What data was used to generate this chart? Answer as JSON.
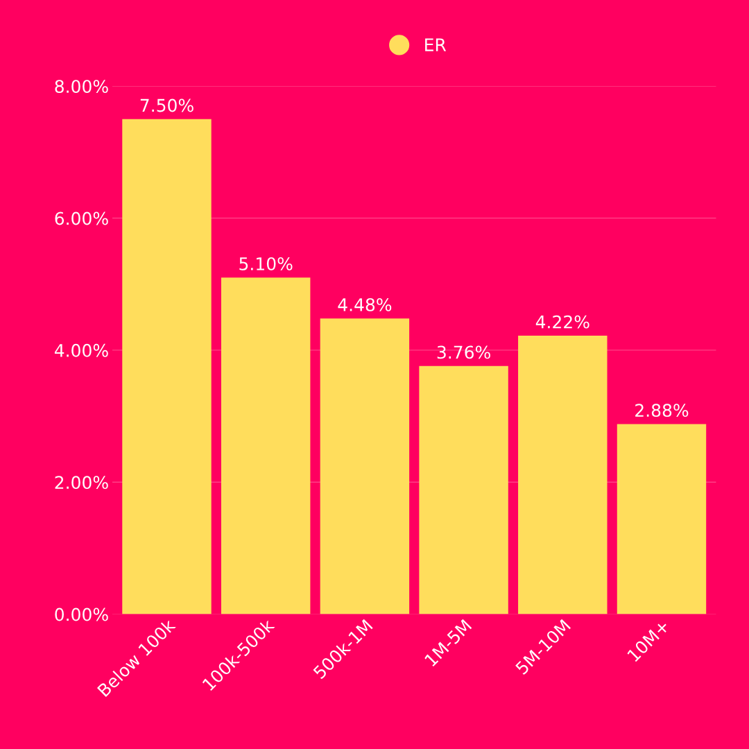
{
  "chart_data": {
    "type": "bar",
    "categories": [
      "Below 100k",
      "100k-500k",
      "500k-1M",
      "1M-5M",
      "5M-10M",
      "10M+"
    ],
    "series": [
      {
        "name": "ER",
        "color": "#ffdd5c",
        "values": [
          7.5,
          5.1,
          4.48,
          3.76,
          4.22,
          2.88
        ]
      }
    ],
    "value_labels": [
      "7.50%",
      "5.10%",
      "4.48%",
      "3.76%",
      "4.22%",
      "2.88%"
    ],
    "ylim": [
      0,
      8
    ],
    "yticks": [
      {
        "value": 0,
        "label": "0.00%"
      },
      {
        "value": 2,
        "label": "2.00%"
      },
      {
        "value": 4,
        "label": "4.00%"
      },
      {
        "value": 6,
        "label": "6.00%"
      },
      {
        "value": 8,
        "label": "8.00%"
      }
    ],
    "grid": "y",
    "legend": "top",
    "marker": "circle"
  }
}
